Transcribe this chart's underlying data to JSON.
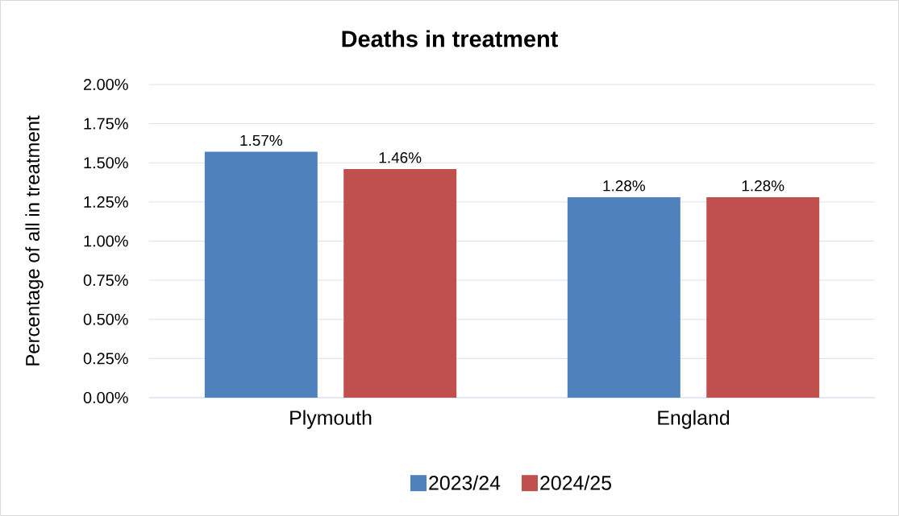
{
  "chart_data": {
    "type": "bar",
    "title": "Deaths in treatment",
    "ylabel": "Percentage of all in treatment",
    "categories": [
      "Plymouth",
      "England"
    ],
    "series": [
      {
        "name": "2023/24",
        "color": "#4f81bd",
        "values": [
          1.57,
          1.28
        ],
        "value_labels": [
          "1.57%",
          "1.28%"
        ]
      },
      {
        "name": "2024/25",
        "color": "#c0504d",
        "values": [
          1.46,
          1.28
        ],
        "value_labels": [
          "1.46%",
          "1.28%"
        ]
      }
    ],
    "ylim": [
      0,
      2
    ],
    "yticks": [
      {
        "value": 0,
        "label": "0.00%"
      },
      {
        "value": 0.25,
        "label": "0.25%"
      },
      {
        "value": 0.5,
        "label": "0.50%"
      },
      {
        "value": 0.75,
        "label": "0.75%"
      },
      {
        "value": 1,
        "label": "1.00%"
      },
      {
        "value": 1.25,
        "label": "1.25%"
      },
      {
        "value": 1.5,
        "label": "1.50%"
      },
      {
        "value": 1.75,
        "label": "1.75%"
      },
      {
        "value": 2,
        "label": "2.00%"
      }
    ],
    "grid": "y",
    "legend": "bottom"
  }
}
